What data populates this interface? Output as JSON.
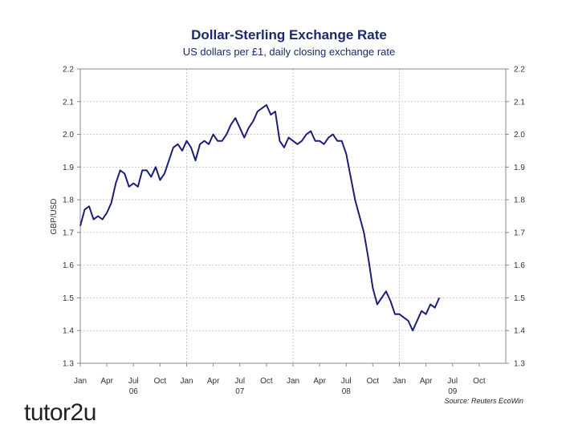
{
  "chart_data": {
    "type": "line",
    "title": "Dollar-Sterling Exchange Rate",
    "subtitle": "US dollars per £1, daily closing exchange rate",
    "ylabel": "GBP/USD",
    "ylim": [
      1.3,
      2.2
    ],
    "yticks": [
      "1.3",
      "1.4",
      "1.5",
      "1.6",
      "1.7",
      "1.8",
      "1.9",
      "2.0",
      "2.1",
      "2.2"
    ],
    "x_months_range": [
      0,
      40.5
    ],
    "xticks": [
      {
        "m": 0,
        "label": "Jan"
      },
      {
        "m": 3,
        "label": "Apr"
      },
      {
        "m": 6,
        "label": "Jul"
      },
      {
        "m": 9,
        "label": "Oct"
      },
      {
        "m": 12,
        "label": "Jan"
      },
      {
        "m": 15,
        "label": "Apr"
      },
      {
        "m": 18,
        "label": "Jul"
      },
      {
        "m": 21,
        "label": "Oct"
      },
      {
        "m": 24,
        "label": "Jan"
      },
      {
        "m": 27,
        "label": "Apr"
      },
      {
        "m": 30,
        "label": "Jul"
      },
      {
        "m": 33,
        "label": "Oct"
      },
      {
        "m": 36,
        "label": "Jan"
      },
      {
        "m": 39,
        "label": "Apr"
      },
      {
        "m": 42,
        "label": "Jul"
      },
      {
        "m": 45,
        "label": "Oct"
      }
    ],
    "year_labels": [
      {
        "m": 6,
        "label": "06"
      },
      {
        "m": 18,
        "label": "07"
      },
      {
        "m": 30,
        "label": "08"
      },
      {
        "m": 42,
        "label": "09"
      }
    ],
    "year_separators": [
      12,
      24,
      36
    ],
    "grid": true,
    "series": [
      {
        "name": "GBP/USD",
        "x_months": [
          0,
          0.5,
          1,
          1.5,
          2,
          2.5,
          3,
          3.5,
          4,
          4.5,
          5,
          5.5,
          6,
          6.5,
          7,
          7.5,
          8,
          8.5,
          9,
          9.5,
          10,
          10.5,
          11,
          11.5,
          12,
          12.5,
          13,
          13.5,
          14,
          14.5,
          15,
          15.5,
          16,
          16.5,
          17,
          17.5,
          18,
          18.5,
          19,
          19.5,
          20,
          20.5,
          21,
          21.5,
          22,
          22.5,
          23,
          23.5,
          24,
          24.5,
          25,
          25.5,
          26,
          26.5,
          27,
          27.5,
          28,
          28.5,
          29,
          29.5,
          30,
          30.5,
          31,
          31.5,
          32,
          32.5,
          33,
          33.5,
          34,
          34.5,
          35,
          35.5,
          36,
          36.5,
          37,
          37.5,
          38,
          38.5,
          39,
          39.5,
          40,
          40.5
        ],
        "values": [
          1.72,
          1.77,
          1.78,
          1.74,
          1.75,
          1.74,
          1.76,
          1.79,
          1.85,
          1.89,
          1.88,
          1.84,
          1.85,
          1.84,
          1.89,
          1.89,
          1.87,
          1.9,
          1.86,
          1.88,
          1.92,
          1.96,
          1.97,
          1.95,
          1.98,
          1.96,
          1.92,
          1.97,
          1.98,
          1.97,
          2.0,
          1.98,
          1.98,
          2.0,
          2.03,
          2.05,
          2.02,
          1.99,
          2.02,
          2.04,
          2.07,
          2.08,
          2.09,
          2.06,
          2.07,
          1.98,
          1.96,
          1.99,
          1.98,
          1.97,
          1.98,
          2.0,
          2.01,
          1.98,
          1.98,
          1.97,
          1.99,
          2.0,
          1.98,
          1.98,
          1.94,
          1.87,
          1.8,
          1.75,
          1.7,
          1.62,
          1.53,
          1.48,
          1.5,
          1.52,
          1.49,
          1.45,
          1.45,
          1.44,
          1.43,
          1.4,
          1.43,
          1.46,
          1.45,
          1.48,
          1.47,
          1.5
        ]
      }
    ]
  },
  "source": "Source: Reuters EcoWin",
  "logo_text": "tutor2u",
  "colors": {
    "line": "#1b1f7a",
    "title": "#1a2a6c"
  }
}
